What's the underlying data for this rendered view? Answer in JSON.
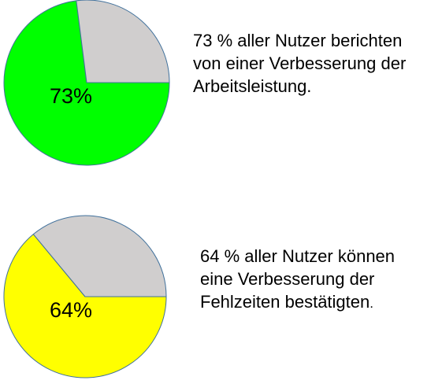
{
  "chart_data": [
    {
      "type": "pie",
      "title": "",
      "categories": [
        "",
        ""
      ],
      "values": [
        73,
        27
      ],
      "colors": [
        "#00ff00",
        "#d0cece"
      ],
      "start_angle_deg": 0,
      "direction": "clockwise",
      "outline_color": "#41719c",
      "data_label": "73%"
    },
    {
      "type": "pie",
      "title": "",
      "categories": [
        "",
        ""
      ],
      "values": [
        64,
        36
      ],
      "colors": [
        "#ffff00",
        "#d0cece"
      ],
      "start_angle_deg": 0,
      "direction": "clockwise",
      "outline_color": "#41719c",
      "data_label": "64%"
    }
  ],
  "texts": [
    {
      "lines": [
        "73 % aller Nutzer berichten",
        "von einer Verbesserung der",
        "Arbeitsleistung."
      ]
    },
    {
      "lines": [
        "64 % aller Nutzer können",
        "eine Verbesserung der",
        "Fehlzeiten bestätigten"
      ],
      "trailing": "."
    }
  ]
}
